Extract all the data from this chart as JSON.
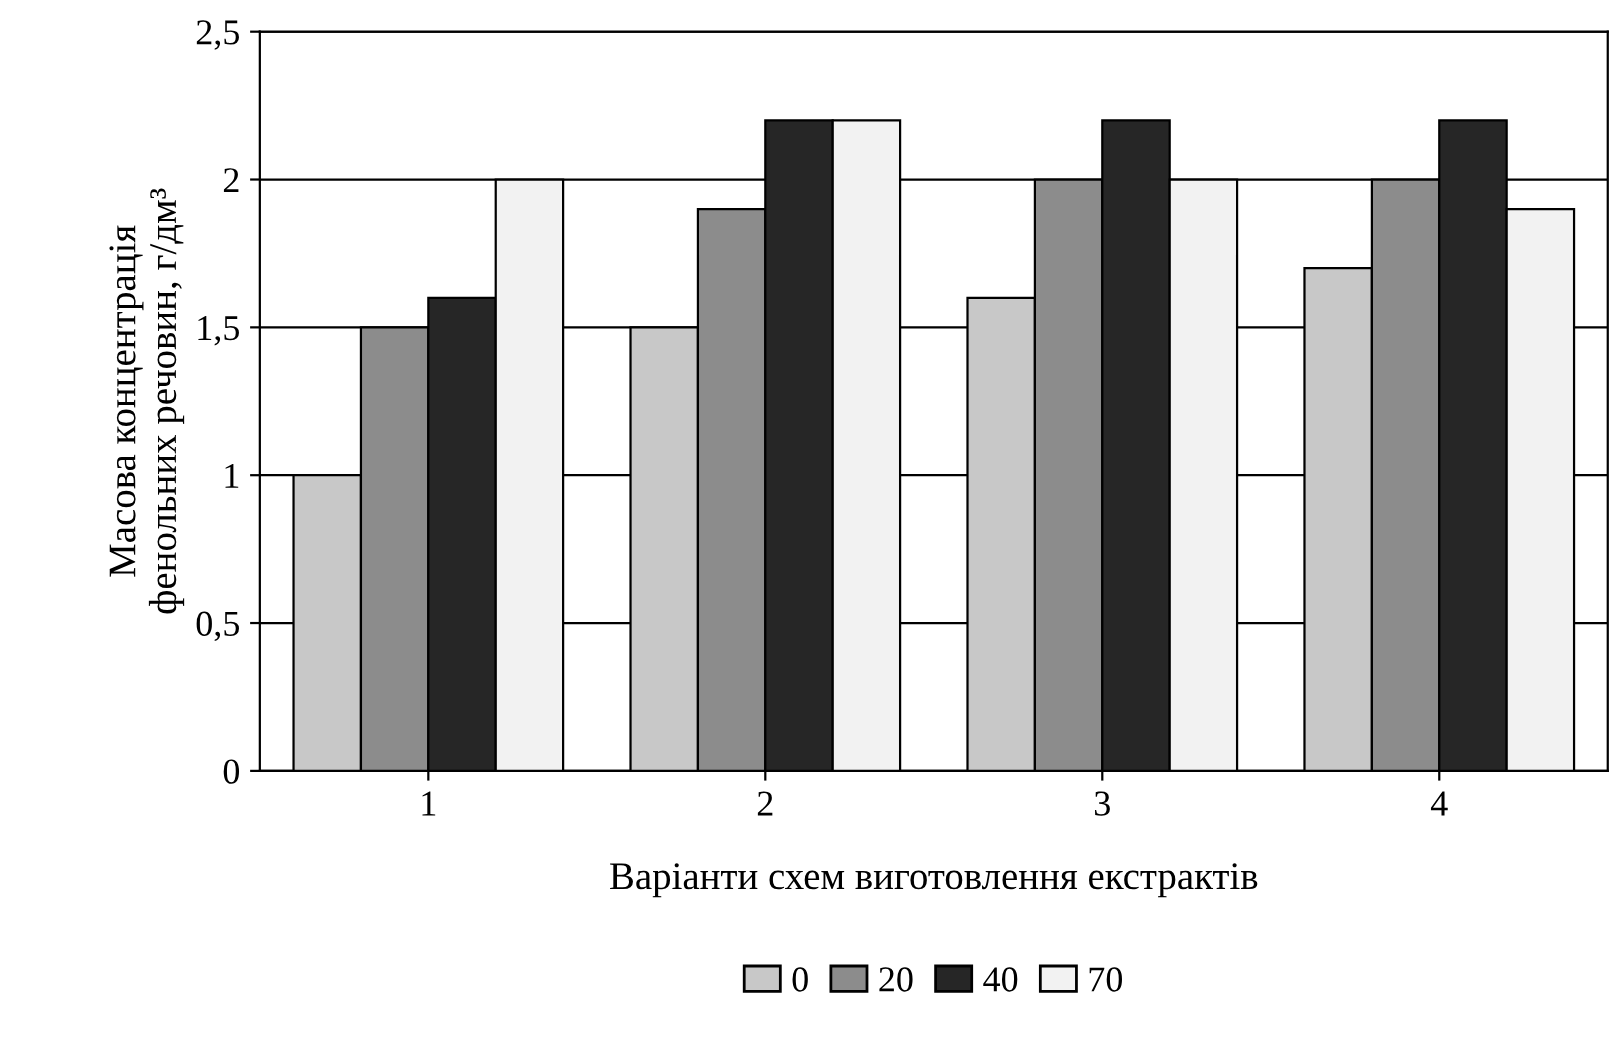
{
  "chart_data": {
    "type": "bar",
    "xlabel": "Варіанти схем виготовлення екстрактів",
    "ylabel": "Масова концентрація\nфенольних речовин, г/дм³",
    "categories": [
      "1",
      "2",
      "3",
      "4"
    ],
    "series": [
      {
        "name": "0",
        "color": "#c8c8c8",
        "values": [
          1.0,
          1.5,
          1.6,
          1.7
        ]
      },
      {
        "name": "20",
        "color": "#8c8c8c",
        "values": [
          1.5,
          1.9,
          2.0,
          2.0
        ]
      },
      {
        "name": "40",
        "color": "#262626",
        "values": [
          1.6,
          2.2,
          2.2,
          2.2
        ]
      },
      {
        "name": "70",
        "color": "#f2f2f2",
        "values": [
          2.0,
          2.2,
          2.0,
          1.9
        ]
      }
    ],
    "ylim": [
      0,
      2.5
    ],
    "yticks": [
      0,
      {
        "value": 0.5,
        "label": "0,5"
      },
      1,
      {
        "value": 1.5,
        "label": "1,5"
      },
      2,
      {
        "value": 2.5,
        "label": "2,5"
      }
    ],
    "grid": "y",
    "legend": "bottom"
  }
}
